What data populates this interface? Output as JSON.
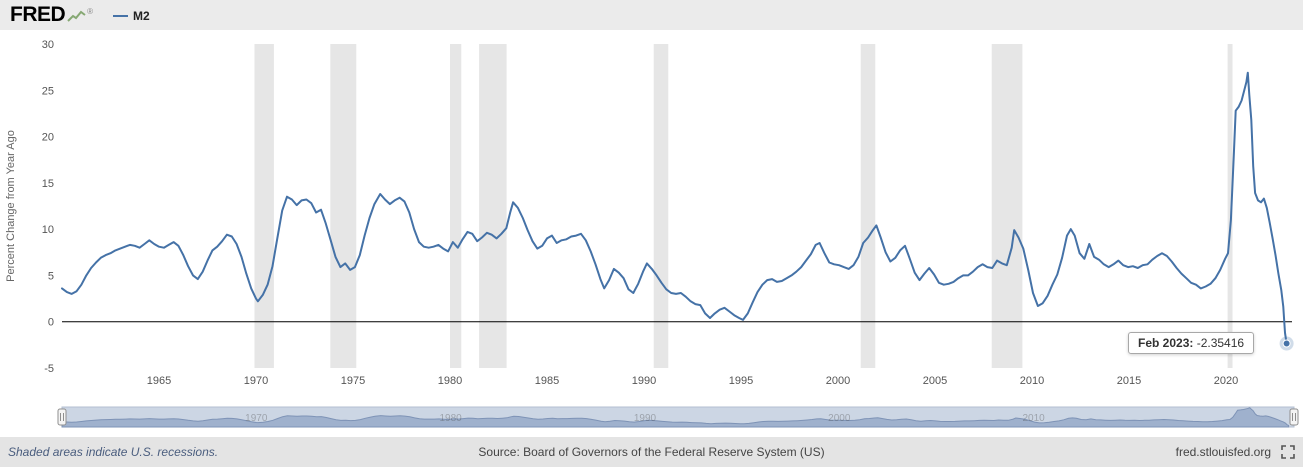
{
  "header": {
    "logo_text": "FRED",
    "registered": "®",
    "legend": {
      "label": "M2",
      "color": "#4572a7"
    }
  },
  "chart": {
    "y_axis_title": "Percent Change from Year Ago",
    "tooltip": {
      "date": "Feb 2023:",
      "value": "-2.35416"
    }
  },
  "footer": {
    "recession_note": "Shaded areas indicate U.S. recessions.",
    "source": "Source: Board of Governors of the Federal Reserve System (US)",
    "site": "fred.stlouisfed.org"
  },
  "chart_data": {
    "type": "line",
    "title": "M2",
    "xlabel": "",
    "ylabel": "Percent Change from Year Ago",
    "xlim": [
      1960.0,
      2023.4
    ],
    "ylim": [
      -5,
      30
    ],
    "x_ticks": [
      1965,
      1970,
      1975,
      1980,
      1985,
      1990,
      1995,
      2000,
      2005,
      2010,
      2015,
      2020
    ],
    "y_ticks": [
      30,
      25,
      20,
      15,
      10,
      5,
      0,
      -5
    ],
    "grid": false,
    "zero_line": true,
    "recession_color": "#e6e6e6",
    "recessions": [
      [
        1969.92,
        1970.92
      ],
      [
        1973.83,
        1975.17
      ],
      [
        1980.0,
        1980.58
      ],
      [
        1981.5,
        1982.92
      ],
      [
        1990.5,
        1991.25
      ],
      [
        2001.17,
        2001.92
      ],
      [
        2007.92,
        2009.5
      ],
      [
        2020.08,
        2020.33
      ]
    ],
    "series": [
      {
        "name": "M2",
        "color": "#4572a7",
        "points": [
          [
            1960.0,
            3.6
          ],
          [
            1960.25,
            3.2
          ],
          [
            1960.5,
            3.0
          ],
          [
            1960.75,
            3.3
          ],
          [
            1961.0,
            4.0
          ],
          [
            1961.25,
            5.0
          ],
          [
            1961.5,
            5.8
          ],
          [
            1961.75,
            6.4
          ],
          [
            1962.0,
            6.9
          ],
          [
            1962.25,
            7.2
          ],
          [
            1962.5,
            7.4
          ],
          [
            1962.75,
            7.7
          ],
          [
            1963.0,
            7.9
          ],
          [
            1963.25,
            8.1
          ],
          [
            1963.5,
            8.3
          ],
          [
            1963.75,
            8.2
          ],
          [
            1964.0,
            8.0
          ],
          [
            1964.25,
            8.4
          ],
          [
            1964.5,
            8.8
          ],
          [
            1964.75,
            8.4
          ],
          [
            1965.0,
            8.1
          ],
          [
            1965.25,
            8.0
          ],
          [
            1965.5,
            8.3
          ],
          [
            1965.75,
            8.6
          ],
          [
            1966.0,
            8.2
          ],
          [
            1966.25,
            7.2
          ],
          [
            1966.5,
            6.0
          ],
          [
            1966.75,
            5.0
          ],
          [
            1967.0,
            4.6
          ],
          [
            1967.25,
            5.4
          ],
          [
            1967.5,
            6.6
          ],
          [
            1967.75,
            7.7
          ],
          [
            1968.0,
            8.1
          ],
          [
            1968.25,
            8.7
          ],
          [
            1968.5,
            9.4
          ],
          [
            1968.75,
            9.2
          ],
          [
            1969.0,
            8.4
          ],
          [
            1969.25,
            7.0
          ],
          [
            1969.5,
            5.2
          ],
          [
            1969.75,
            3.6
          ],
          [
            1970.0,
            2.5
          ],
          [
            1970.1,
            2.2
          ],
          [
            1970.35,
            2.9
          ],
          [
            1970.6,
            4.0
          ],
          [
            1970.85,
            6.0
          ],
          [
            1971.1,
            9.0
          ],
          [
            1971.35,
            12.0
          ],
          [
            1971.6,
            13.5
          ],
          [
            1971.85,
            13.2
          ],
          [
            1972.1,
            12.6
          ],
          [
            1972.35,
            13.1
          ],
          [
            1972.6,
            13.2
          ],
          [
            1972.85,
            12.8
          ],
          [
            1973.1,
            11.8
          ],
          [
            1973.35,
            12.1
          ],
          [
            1973.6,
            10.6
          ],
          [
            1973.85,
            8.8
          ],
          [
            1974.1,
            7.0
          ],
          [
            1974.35,
            5.9
          ],
          [
            1974.6,
            6.3
          ],
          [
            1974.85,
            5.6
          ],
          [
            1975.1,
            5.9
          ],
          [
            1975.35,
            7.2
          ],
          [
            1975.6,
            9.3
          ],
          [
            1975.85,
            11.2
          ],
          [
            1976.1,
            12.7
          ],
          [
            1976.4,
            13.8
          ],
          [
            1976.65,
            13.2
          ],
          [
            1976.9,
            12.7
          ],
          [
            1977.15,
            13.1
          ],
          [
            1977.4,
            13.4
          ],
          [
            1977.65,
            13.0
          ],
          [
            1977.9,
            11.8
          ],
          [
            1978.15,
            10.0
          ],
          [
            1978.4,
            8.6
          ],
          [
            1978.65,
            8.1
          ],
          [
            1978.9,
            8.0
          ],
          [
            1979.15,
            8.1
          ],
          [
            1979.4,
            8.3
          ],
          [
            1979.65,
            7.9
          ],
          [
            1979.9,
            7.6
          ],
          [
            1980.15,
            8.6
          ],
          [
            1980.4,
            8.0
          ],
          [
            1980.65,
            8.9
          ],
          [
            1980.9,
            9.7
          ],
          [
            1981.15,
            9.5
          ],
          [
            1981.4,
            8.7
          ],
          [
            1981.65,
            9.1
          ],
          [
            1981.9,
            9.6
          ],
          [
            1982.15,
            9.4
          ],
          [
            1982.4,
            9.0
          ],
          [
            1982.65,
            9.5
          ],
          [
            1982.9,
            10.1
          ],
          [
            1983.1,
            11.8
          ],
          [
            1983.25,
            12.9
          ],
          [
            1983.5,
            12.3
          ],
          [
            1983.75,
            11.2
          ],
          [
            1984.0,
            9.9
          ],
          [
            1984.25,
            8.7
          ],
          [
            1984.5,
            7.9
          ],
          [
            1984.75,
            8.2
          ],
          [
            1985.0,
            9.0
          ],
          [
            1985.25,
            9.3
          ],
          [
            1985.5,
            8.5
          ],
          [
            1985.75,
            8.8
          ],
          [
            1986.0,
            8.9
          ],
          [
            1986.25,
            9.2
          ],
          [
            1986.5,
            9.3
          ],
          [
            1986.75,
            9.5
          ],
          [
            1987.0,
            8.8
          ],
          [
            1987.25,
            7.6
          ],
          [
            1987.5,
            6.2
          ],
          [
            1987.75,
            4.6
          ],
          [
            1987.95,
            3.6
          ],
          [
            1988.2,
            4.5
          ],
          [
            1988.45,
            5.7
          ],
          [
            1988.7,
            5.3
          ],
          [
            1988.95,
            4.7
          ],
          [
            1989.2,
            3.5
          ],
          [
            1989.45,
            3.1
          ],
          [
            1989.7,
            4.1
          ],
          [
            1989.95,
            5.4
          ],
          [
            1990.15,
            6.3
          ],
          [
            1990.4,
            5.7
          ],
          [
            1990.65,
            5.0
          ],
          [
            1990.9,
            4.2
          ],
          [
            1991.15,
            3.5
          ],
          [
            1991.4,
            3.1
          ],
          [
            1991.65,
            3.0
          ],
          [
            1991.9,
            3.1
          ],
          [
            1992.15,
            2.7
          ],
          [
            1992.4,
            2.2
          ],
          [
            1992.65,
            1.9
          ],
          [
            1992.9,
            1.8
          ],
          [
            1993.15,
            0.9
          ],
          [
            1993.4,
            0.4
          ],
          [
            1993.65,
            0.9
          ],
          [
            1993.9,
            1.3
          ],
          [
            1994.15,
            1.5
          ],
          [
            1994.4,
            1.1
          ],
          [
            1994.65,
            0.7
          ],
          [
            1994.9,
            0.4
          ],
          [
            1995.1,
            0.2
          ],
          [
            1995.35,
            0.9
          ],
          [
            1995.6,
            2.1
          ],
          [
            1995.85,
            3.2
          ],
          [
            1996.1,
            4.0
          ],
          [
            1996.35,
            4.5
          ],
          [
            1996.6,
            4.6
          ],
          [
            1996.85,
            4.3
          ],
          [
            1997.1,
            4.4
          ],
          [
            1997.35,
            4.7
          ],
          [
            1997.6,
            5.0
          ],
          [
            1997.85,
            5.4
          ],
          [
            1998.1,
            5.9
          ],
          [
            1998.35,
            6.6
          ],
          [
            1998.6,
            7.3
          ],
          [
            1998.85,
            8.3
          ],
          [
            1999.05,
            8.5
          ],
          [
            1999.3,
            7.4
          ],
          [
            1999.55,
            6.4
          ],
          [
            1999.8,
            6.2
          ],
          [
            2000.05,
            6.1
          ],
          [
            2000.3,
            5.9
          ],
          [
            2000.55,
            5.7
          ],
          [
            2000.8,
            6.1
          ],
          [
            2001.05,
            7.0
          ],
          [
            2001.3,
            8.5
          ],
          [
            2001.55,
            9.1
          ],
          [
            2001.8,
            9.9
          ],
          [
            2001.98,
            10.4
          ],
          [
            2002.2,
            9.1
          ],
          [
            2002.45,
            7.5
          ],
          [
            2002.7,
            6.5
          ],
          [
            2002.95,
            6.9
          ],
          [
            2003.2,
            7.7
          ],
          [
            2003.45,
            8.2
          ],
          [
            2003.7,
            6.8
          ],
          [
            2003.95,
            5.3
          ],
          [
            2004.2,
            4.5
          ],
          [
            2004.45,
            5.2
          ],
          [
            2004.7,
            5.8
          ],
          [
            2004.95,
            5.1
          ],
          [
            2005.2,
            4.2
          ],
          [
            2005.45,
            4.0
          ],
          [
            2005.7,
            4.1
          ],
          [
            2005.95,
            4.3
          ],
          [
            2006.2,
            4.7
          ],
          [
            2006.45,
            5.0
          ],
          [
            2006.7,
            5.0
          ],
          [
            2006.95,
            5.4
          ],
          [
            2007.2,
            5.9
          ],
          [
            2007.45,
            6.2
          ],
          [
            2007.7,
            5.9
          ],
          [
            2007.95,
            5.8
          ],
          [
            2008.2,
            6.6
          ],
          [
            2008.45,
            6.3
          ],
          [
            2008.7,
            6.1
          ],
          [
            2008.95,
            8.0
          ],
          [
            2009.08,
            9.9
          ],
          [
            2009.3,
            9.1
          ],
          [
            2009.55,
            7.9
          ],
          [
            2009.8,
            5.6
          ],
          [
            2010.05,
            3.1
          ],
          [
            2010.3,
            1.7
          ],
          [
            2010.55,
            2.0
          ],
          [
            2010.8,
            2.8
          ],
          [
            2011.05,
            4.0
          ],
          [
            2011.3,
            5.1
          ],
          [
            2011.55,
            6.9
          ],
          [
            2011.8,
            9.3
          ],
          [
            2012.0,
            10.0
          ],
          [
            2012.2,
            9.3
          ],
          [
            2012.45,
            7.4
          ],
          [
            2012.7,
            6.8
          ],
          [
            2012.95,
            8.4
          ],
          [
            2013.2,
            7.0
          ],
          [
            2013.45,
            6.7
          ],
          [
            2013.7,
            6.2
          ],
          [
            2013.95,
            5.9
          ],
          [
            2014.2,
            6.2
          ],
          [
            2014.45,
            6.6
          ],
          [
            2014.7,
            6.1
          ],
          [
            2014.95,
            5.9
          ],
          [
            2015.2,
            6.0
          ],
          [
            2015.45,
            5.8
          ],
          [
            2015.7,
            6.1
          ],
          [
            2015.95,
            6.2
          ],
          [
            2016.2,
            6.7
          ],
          [
            2016.45,
            7.1
          ],
          [
            2016.7,
            7.4
          ],
          [
            2016.95,
            7.1
          ],
          [
            2017.2,
            6.5
          ],
          [
            2017.45,
            5.8
          ],
          [
            2017.7,
            5.2
          ],
          [
            2017.95,
            4.7
          ],
          [
            2018.2,
            4.2
          ],
          [
            2018.45,
            4.0
          ],
          [
            2018.7,
            3.6
          ],
          [
            2018.95,
            3.8
          ],
          [
            2019.2,
            4.1
          ],
          [
            2019.45,
            4.7
          ],
          [
            2019.7,
            5.6
          ],
          [
            2019.95,
            6.8
          ],
          [
            2020.1,
            7.4
          ],
          [
            2020.25,
            11.0
          ],
          [
            2020.4,
            18.0
          ],
          [
            2020.5,
            22.8
          ],
          [
            2020.65,
            23.2
          ],
          [
            2020.8,
            23.9
          ],
          [
            2020.95,
            25.1
          ],
          [
            2021.05,
            25.9
          ],
          [
            2021.12,
            26.9
          ],
          [
            2021.2,
            24.5
          ],
          [
            2021.3,
            21.8
          ],
          [
            2021.4,
            16.8
          ],
          [
            2021.5,
            13.9
          ],
          [
            2021.65,
            13.1
          ],
          [
            2021.8,
            12.9
          ],
          [
            2021.95,
            13.3
          ],
          [
            2022.1,
            12.3
          ],
          [
            2022.25,
            10.7
          ],
          [
            2022.4,
            9.0
          ],
          [
            2022.55,
            7.2
          ],
          [
            2022.7,
            5.2
          ],
          [
            2022.85,
            3.4
          ],
          [
            2022.95,
            1.6
          ],
          [
            2023.0,
            0.1
          ],
          [
            2023.04,
            -1.2
          ],
          [
            2023.12,
            -2.35416
          ]
        ]
      }
    ],
    "last_point": {
      "date": "Feb 2023",
      "value": -2.35416
    },
    "legend_position": "top-left",
    "navigator": {
      "tick_labels": [
        1970,
        1980,
        1990,
        2000,
        2010
      ],
      "track_color": "#ccd6e4",
      "area_fill": "#9fb1cd",
      "area_stroke": "#7e93b6",
      "selected_range": "full"
    }
  }
}
